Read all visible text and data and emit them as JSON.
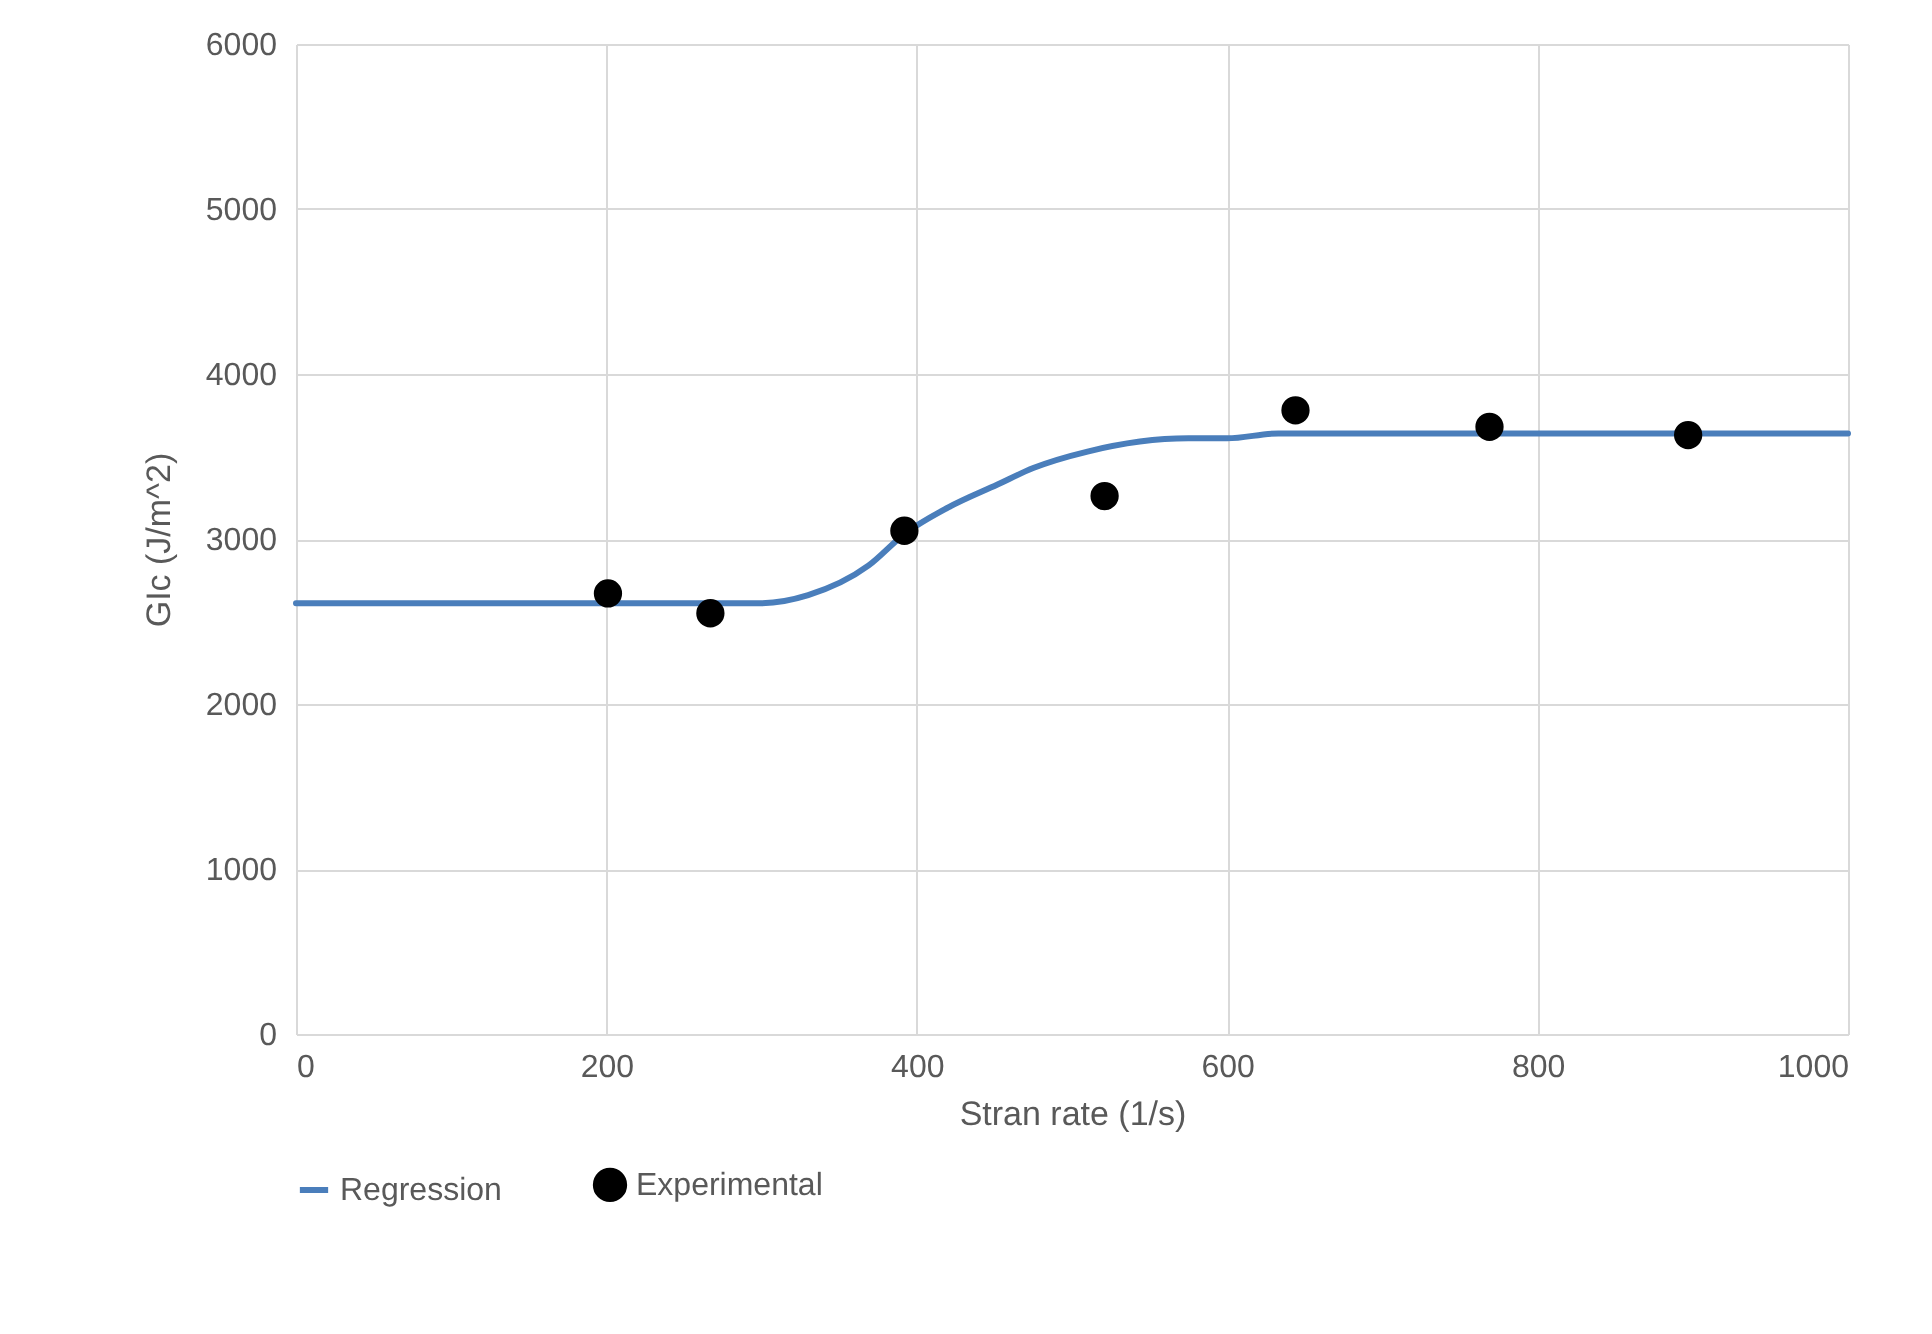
{
  "chart_data": {
    "type": "scatter",
    "xlabel": "Stran rate (1/s)",
    "ylabel": "GIc (J/m^2)",
    "xlim": [
      0,
      1000
    ],
    "xticks": [
      0,
      200,
      400,
      600,
      800,
      1000
    ],
    "ylim": [
      0,
      6000
    ],
    "yticks": [
      0,
      1000,
      2000,
      3000,
      4000,
      5000,
      6000
    ],
    "grid": true,
    "legend": "bottom",
    "series": [
      {
        "name": "Regression",
        "type": "line",
        "color": "#4a7ebb",
        "x": [
          0,
          100,
          200,
          298,
          330,
          369,
          392,
          420,
          452,
          475,
          510,
          575,
          600,
          633,
          700,
          800,
          900,
          1000
        ],
        "values": [
          2610,
          2610,
          2610,
          2610,
          2660,
          2840,
          3030,
          3190,
          3330,
          3430,
          3530,
          3610,
          3610,
          3640,
          3640,
          3640,
          3640,
          3640
        ]
      },
      {
        "name": "Experimental",
        "color": "#000000",
        "marker": "circle",
        "x": [
          201,
          267,
          392,
          521,
          644,
          769,
          897
        ],
        "values": [
          2670,
          2550,
          3050,
          3260,
          3780,
          3680,
          3630
        ]
      }
    ]
  }
}
